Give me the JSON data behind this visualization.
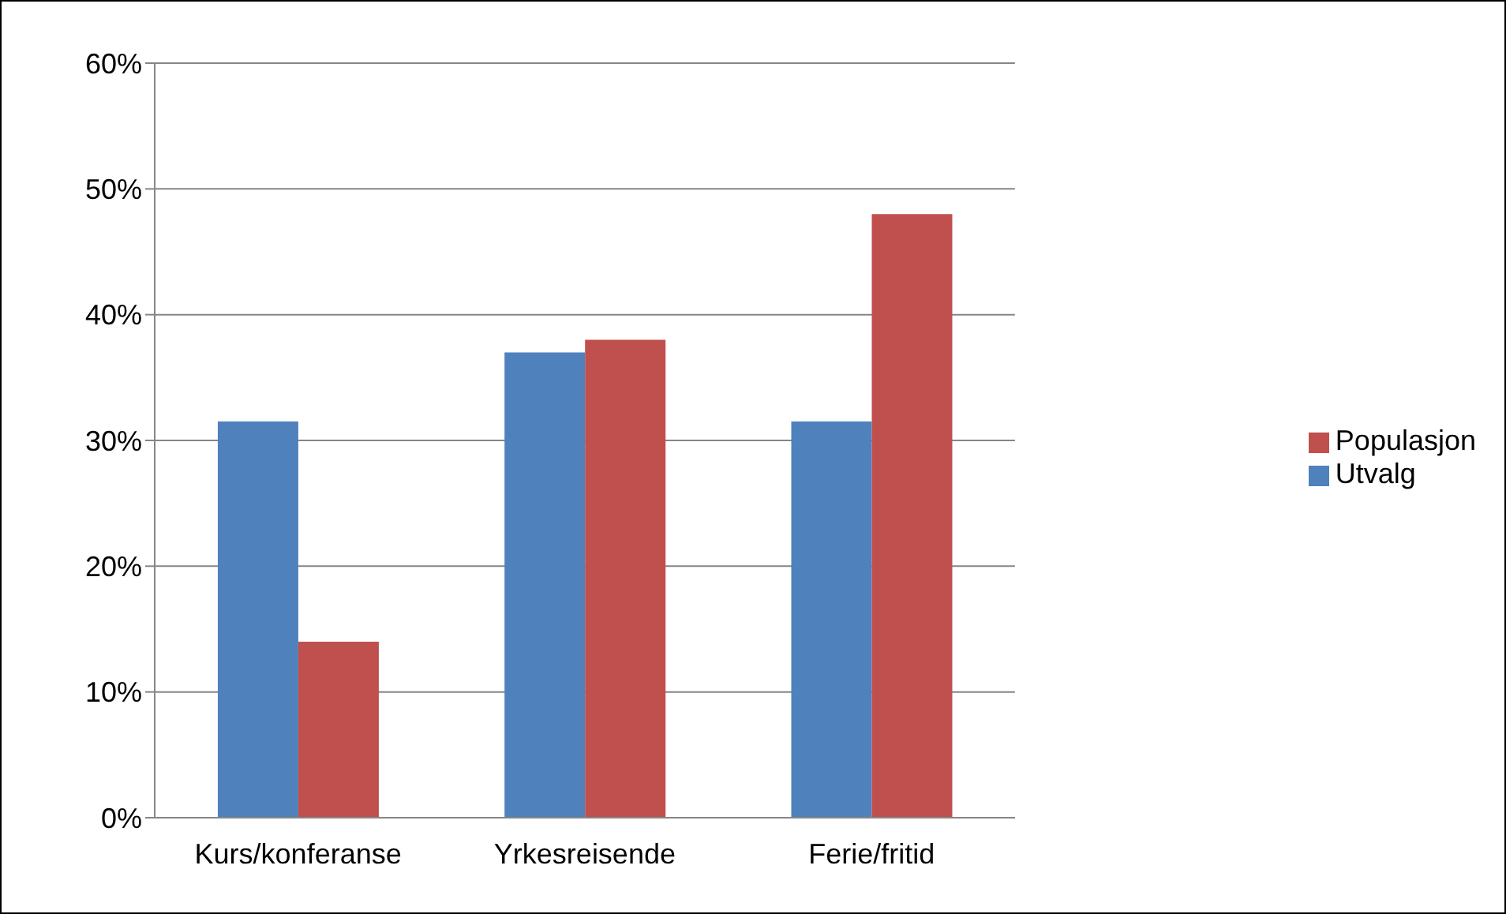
{
  "chart_data": {
    "type": "bar",
    "categories": [
      "Kurs/konferanse",
      "Yrkesreisende",
      "Ferie/fritid"
    ],
    "series": [
      {
        "name": "Utvalg",
        "color": "#4f81bd",
        "values": [
          31.5,
          37,
          31.5
        ]
      },
      {
        "name": "Populasjon",
        "color": "#c0504d",
        "values": [
          14,
          38,
          48
        ]
      }
    ],
    "ylim": [
      0,
      60
    ],
    "yticks": [
      {
        "value": 0,
        "label": "0%"
      },
      {
        "value": 10,
        "label": "10%"
      },
      {
        "value": 20,
        "label": "20%"
      },
      {
        "value": 30,
        "label": "30%"
      },
      {
        "value": 40,
        "label": "40%"
      },
      {
        "value": 50,
        "label": "50%"
      },
      {
        "value": 60,
        "label": "60%"
      }
    ],
    "grid": "y",
    "legend": "right"
  }
}
